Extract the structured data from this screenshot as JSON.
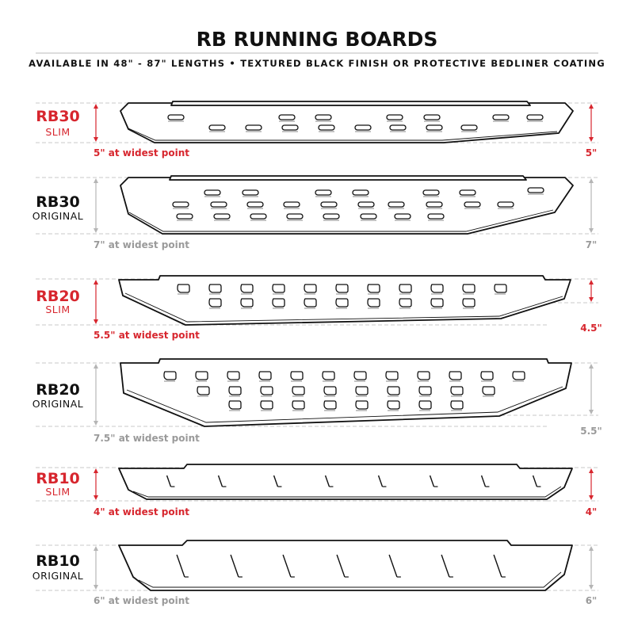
{
  "title": "RB RUNNING BOARDS",
  "subtitle": "AVAILABLE IN 48\" - 87\" LENGTHS   •   TEXTURED BLACK FINISH OR PROTECTIVE BEDLINER COATING",
  "colors": {
    "accent": "#d7262e",
    "muted": "#9a9a9a",
    "text": "#111111"
  },
  "boards": [
    {
      "model": "RB30",
      "variant": "SLIM",
      "width_caption": "5\" at widest point",
      "end_width": "5\"",
      "highlight": true
    },
    {
      "model": "RB30",
      "variant": "ORIGINAL",
      "width_caption": "7\" at widest point",
      "end_width": "7\"",
      "highlight": false
    },
    {
      "model": "RB20",
      "variant": "SLIM",
      "width_caption": "5.5\" at widest point",
      "end_width": "4.5\"",
      "highlight": true
    },
    {
      "model": "RB20",
      "variant": "ORIGINAL",
      "width_caption": "7.5\" at widest point",
      "end_width": "5.5\"",
      "highlight": false
    },
    {
      "model": "RB10",
      "variant": "SLIM",
      "width_caption": "4\" at widest point",
      "end_width": "4\"",
      "highlight": true
    },
    {
      "model": "RB10",
      "variant": "ORIGINAL",
      "width_caption": "6\" at widest point",
      "end_width": "6\"",
      "highlight": false
    }
  ]
}
